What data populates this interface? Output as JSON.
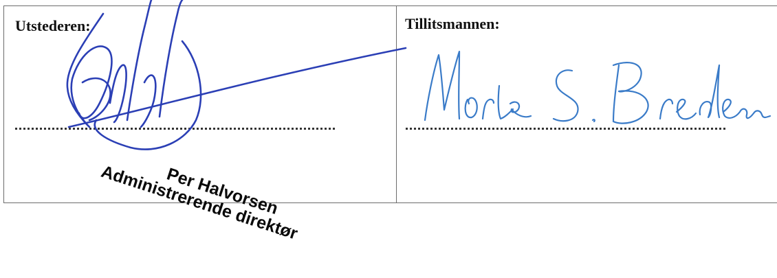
{
  "issuer": {
    "label": "Utstederen:",
    "stamp_name": "Per Halvorsen",
    "stamp_title": "Administrerende direktør"
  },
  "trustee": {
    "label": "Tillitsmannen:",
    "signature_text": "Morten S. Bredesen"
  },
  "colors": {
    "ink_issuer": "#2b3fb5",
    "ink_trustee": "#3a7bc8",
    "border": "#6b6b6b"
  }
}
